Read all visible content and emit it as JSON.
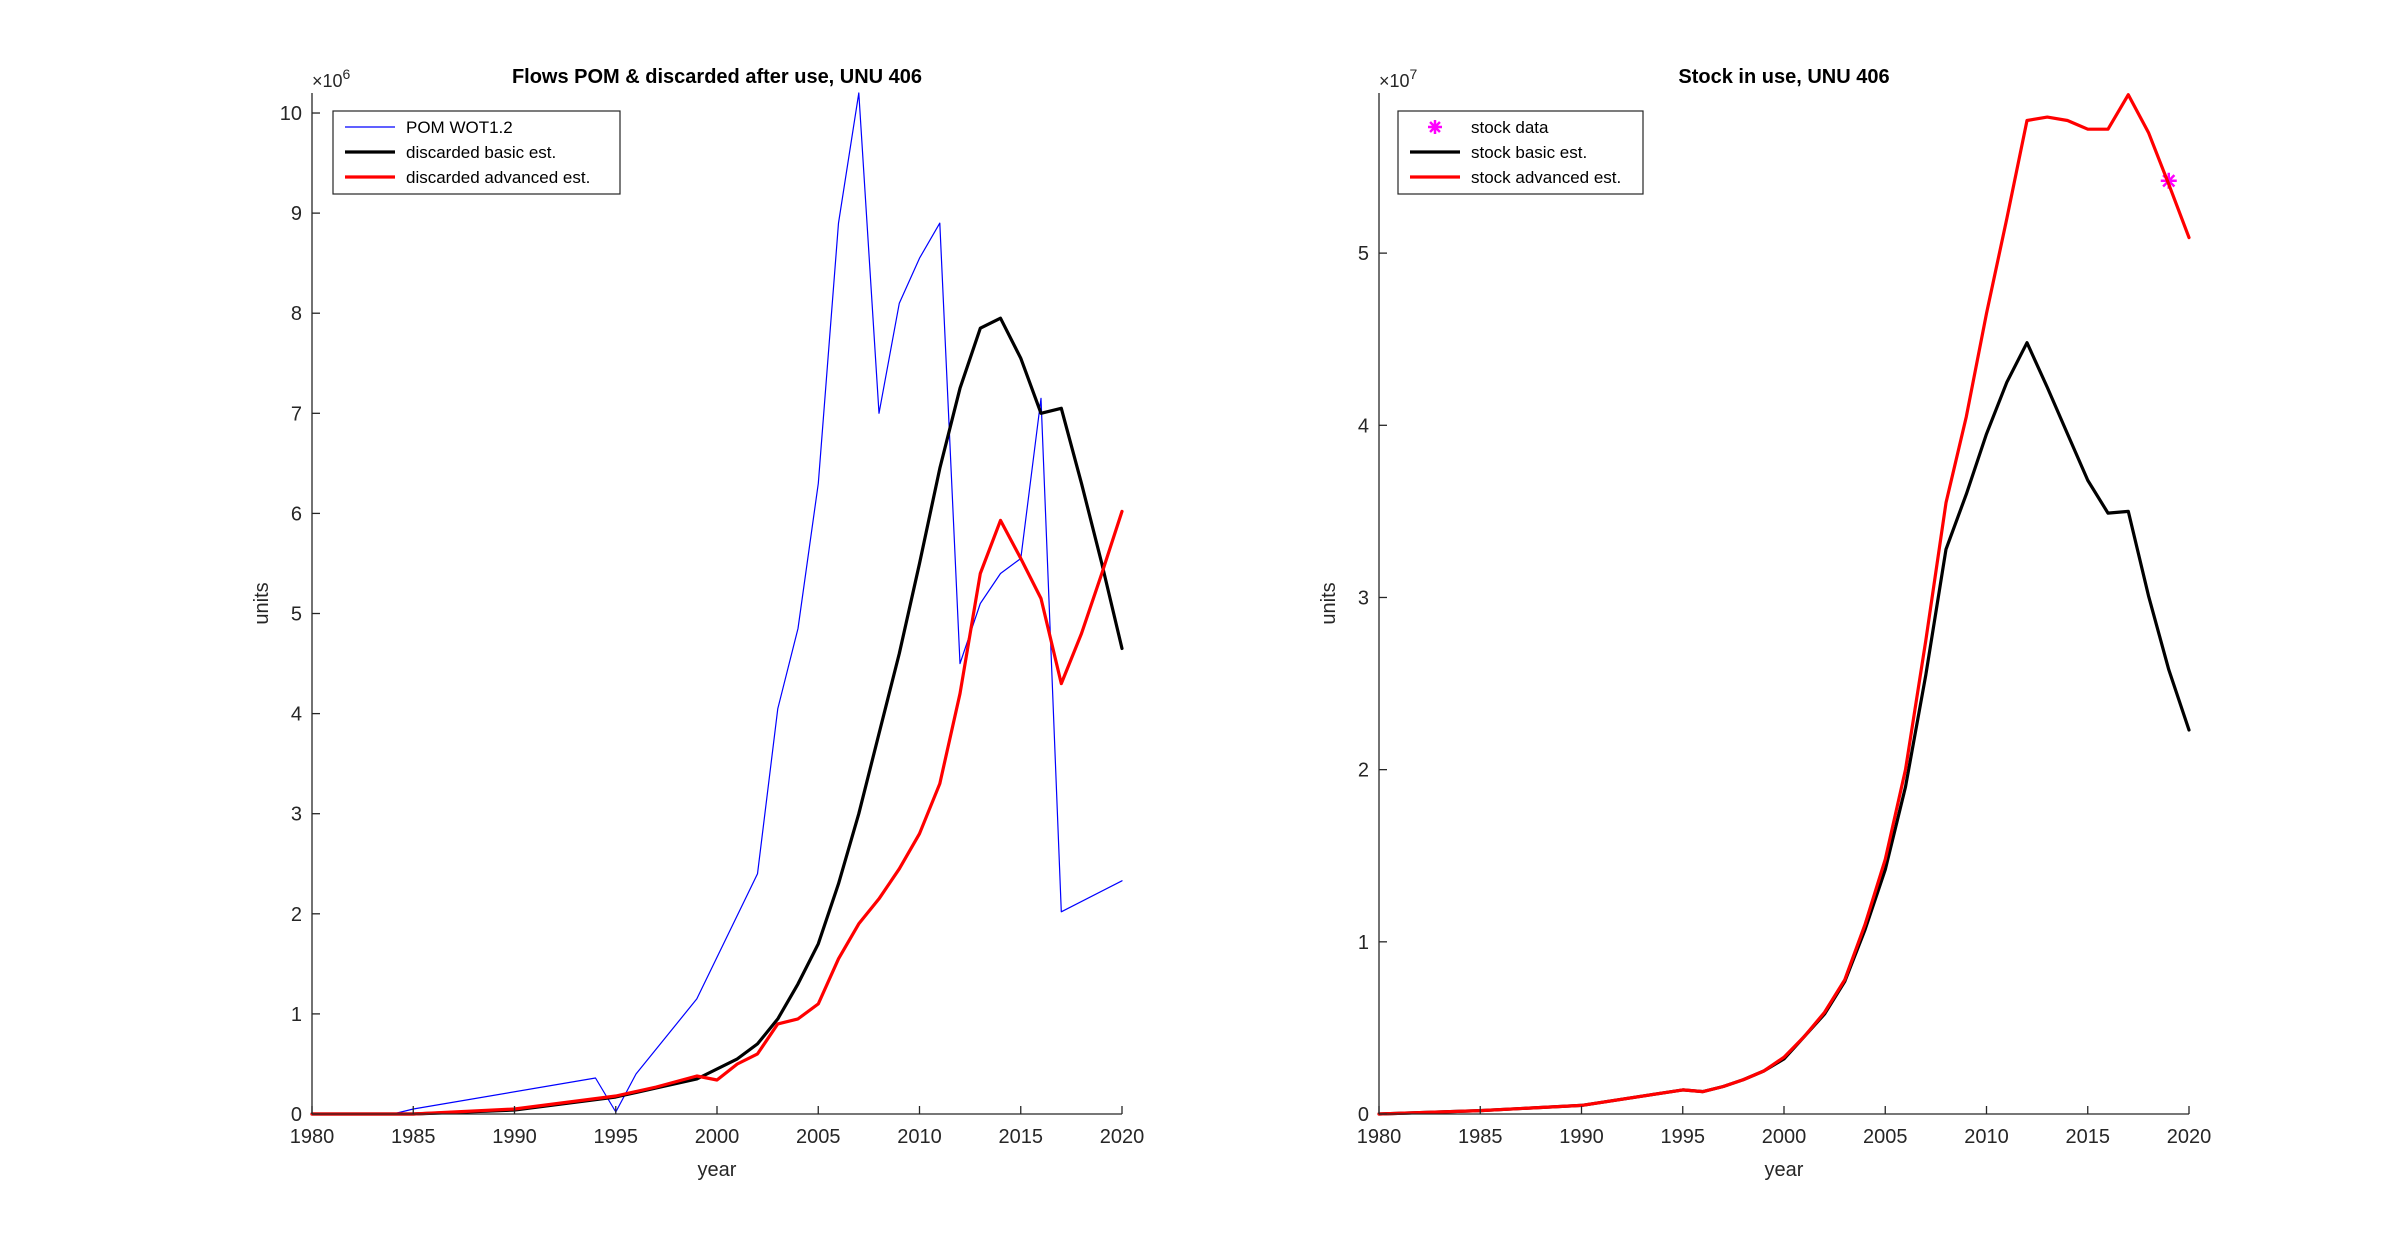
{
  "chart_data": [
    {
      "type": "line",
      "title": "Flows POM & discarded after use, UNU 406",
      "xlabel": "year",
      "ylabel": "units",
      "exponent": "×10",
      "exponent_power": "6",
      "xlim": [
        1980,
        2020
      ],
      "ylim": [
        0,
        10.2
      ],
      "xticks": [
        "1980",
        "1985",
        "1990",
        "1995",
        "2000",
        "2005",
        "2010",
        "2015",
        "2020"
      ],
      "yticks": [
        "0",
        "1",
        "2",
        "3",
        "4",
        "5",
        "6",
        "7",
        "8",
        "9",
        "10"
      ],
      "legend_position": "top-left",
      "series": [
        {
          "name": "POM WOT1.2",
          "color": "#0000ff",
          "width": 1,
          "x": [
            1984,
            1985,
            1994,
            1995,
            1996,
            1999,
            2002,
            2003,
            2004,
            2005,
            2006,
            2007,
            2008,
            2009,
            2010,
            2011,
            2012,
            2013,
            2014,
            2015,
            2016,
            2017,
            2020
          ],
          "y": [
            0,
            0.05,
            0.36,
            0.02,
            0.4,
            1.15,
            2.4,
            4.05,
            4.85,
            6.3,
            8.9,
            10.2,
            7.0,
            8.1,
            8.55,
            8.9,
            4.5,
            5.1,
            5.4,
            5.55,
            7.15,
            2.02,
            2.33
          ]
        },
        {
          "name": "discarded basic est.",
          "color": "#000000",
          "width": 2,
          "x": [
            1980,
            1985,
            1990,
            1995,
            1997,
            1999,
            2001,
            2002,
            2003,
            2004,
            2005,
            2006,
            2007,
            2008,
            2009,
            2010,
            2011,
            2012,
            2013,
            2014,
            2015,
            2016,
            2017,
            2018,
            2019,
            2020
          ],
          "y": [
            0,
            0,
            0.04,
            0.17,
            0.26,
            0.35,
            0.55,
            0.7,
            0.95,
            1.3,
            1.7,
            2.3,
            3.0,
            3.8,
            4.6,
            5.5,
            6.45,
            7.25,
            7.85,
            7.95,
            7.55,
            7.0,
            7.05,
            6.3,
            5.5,
            4.65
          ]
        },
        {
          "name": "discarded advanced est.",
          "color": "#ff0000",
          "width": 2,
          "x": [
            1980,
            1985,
            1990,
            1995,
            1997,
            1999,
            2000,
            2001,
            2002,
            2003,
            2004,
            2005,
            2006,
            2007,
            2008,
            2009,
            2010,
            2011,
            2012,
            2013,
            2014,
            2015,
            2016,
            2017,
            2018,
            2019,
            2020
          ],
          "y": [
            0,
            0,
            0.05,
            0.18,
            0.27,
            0.38,
            0.34,
            0.5,
            0.6,
            0.9,
            0.95,
            1.1,
            1.55,
            1.9,
            2.15,
            2.45,
            2.8,
            3.3,
            4.2,
            5.4,
            5.93,
            5.55,
            5.15,
            4.3,
            4.8,
            5.4,
            6.02
          ]
        }
      ]
    },
    {
      "type": "line",
      "title": "Stock in use, UNU 406",
      "xlabel": "year",
      "ylabel": "units",
      "exponent": "×10",
      "exponent_power": "7",
      "xlim": [
        1980,
        2020
      ],
      "ylim": [
        0,
        5.93
      ],
      "xticks": [
        "1980",
        "1985",
        "1990",
        "1995",
        "2000",
        "2005",
        "2010",
        "2015",
        "2020"
      ],
      "yticks": [
        "0",
        "1",
        "2",
        "3",
        "4",
        "5"
      ],
      "legend_position": "top-left",
      "series": [
        {
          "name": "stock data",
          "color": "#ff00ff",
          "marker": "star",
          "x": [
            2019
          ],
          "y": [
            5.42
          ]
        },
        {
          "name": "stock basic est.",
          "color": "#000000",
          "width": 2,
          "x": [
            1980,
            1985,
            1990,
            1995,
            1996,
            1997,
            1998,
            1999,
            2000,
            2001,
            2002,
            2003,
            2004,
            2005,
            2006,
            2007,
            2008,
            2009,
            2010,
            2011,
            2012,
            2013,
            2014,
            2015,
            2016,
            2017,
            2018,
            2019,
            2020
          ],
          "y": [
            0,
            0.02,
            0.05,
            0.14,
            0.13,
            0.16,
            0.2,
            0.25,
            0.32,
            0.45,
            0.58,
            0.77,
            1.07,
            1.42,
            1.9,
            2.55,
            3.28,
            3.6,
            3.95,
            4.25,
            4.48,
            4.22,
            3.95,
            3.68,
            3.49,
            3.5,
            3.01,
            2.58,
            2.23
          ]
        },
        {
          "name": "stock advanced est.",
          "color": "#ff0000",
          "width": 2,
          "x": [
            1980,
            1985,
            1990,
            1995,
            1996,
            1997,
            1998,
            1999,
            2000,
            2001,
            2002,
            2003,
            2004,
            2005,
            2006,
            2007,
            2008,
            2009,
            2010,
            2011,
            2012,
            2013,
            2014,
            2015,
            2016,
            2017,
            2018,
            2019,
            2020
          ],
          "y": [
            0,
            0.02,
            0.05,
            0.14,
            0.13,
            0.16,
            0.2,
            0.25,
            0.33,
            0.45,
            0.59,
            0.78,
            1.1,
            1.48,
            2.0,
            2.75,
            3.55,
            4.05,
            4.65,
            5.2,
            5.77,
            5.79,
            5.77,
            5.72,
            5.72,
            5.92,
            5.7,
            5.4,
            5.09
          ]
        }
      ]
    }
  ]
}
